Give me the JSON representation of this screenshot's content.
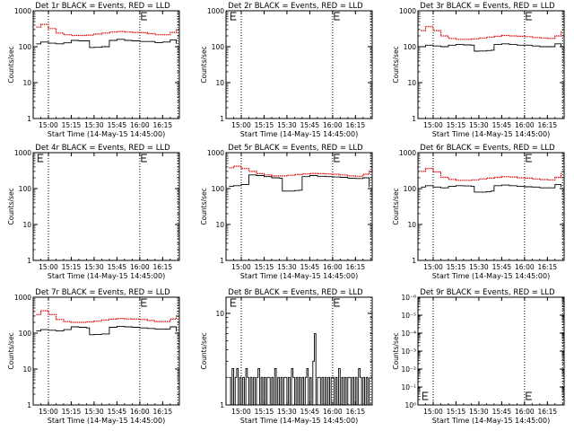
{
  "figure": {
    "background": "#ffffff",
    "axis_color": "#000000",
    "events_color": "#000000",
    "lld_color": "#e00000"
  },
  "chart_data": [
    {
      "type": "line",
      "title": "Det 1r BLACK = Events, RED = LLD",
      "xlabel": "Start Time (14-May-15 14:45:00)",
      "ylabel": "Counts/sec",
      "xticks": [
        "15:00",
        "15:15",
        "15:30",
        "15:45",
        "16:00",
        "16:15"
      ],
      "ylog": true,
      "yticks": [
        "1",
        "10",
        "100",
        "1000"
      ],
      "ylim": [
        1,
        1000
      ],
      "vlines": [
        "15:00",
        "16:00",
        "16:25"
      ],
      "markers": [
        "16:00"
      ],
      "series": [
        {
          "name": "Events",
          "color": "#000000",
          "x": [
            "14:52",
            "14:55",
            "15:00",
            "15:05",
            "15:10",
            "15:15",
            "15:20",
            "15:25",
            "15:27",
            "15:30",
            "15:35",
            "15:38",
            "15:40",
            "15:45",
            "15:50",
            "15:55",
            "16:00",
            "16:05",
            "16:10",
            "16:15",
            "16:20",
            "16:24"
          ],
          "y": [
            120,
            135,
            125,
            120,
            128,
            150,
            145,
            145,
            95,
            96,
            100,
            100,
            150,
            160,
            150,
            145,
            140,
            140,
            130,
            135,
            155,
            120
          ]
        },
        {
          "name": "LLD",
          "color": "#e00000",
          "x": [
            "14:52",
            "14:55",
            "15:00",
            "15:05",
            "15:10",
            "15:15",
            "15:20",
            "15:25",
            "15:30",
            "15:35",
            "15:40",
            "15:45",
            "15:50",
            "15:55",
            "16:00",
            "16:05",
            "16:10",
            "16:15",
            "16:20",
            "16:24"
          ],
          "y": [
            350,
            420,
            320,
            240,
            215,
            205,
            205,
            210,
            225,
            240,
            255,
            265,
            255,
            250,
            245,
            230,
            215,
            215,
            250,
            320
          ]
        }
      ]
    },
    {
      "type": "line",
      "title": "Det 2r BLACK = Events, RED = LLD",
      "xlabel": "Start Time (14-May-15 14:45:00)",
      "ylabel": "Counts/sec",
      "xticks": [
        "15:00",
        "15:15",
        "15:30",
        "15:45",
        "16:00",
        "16:15"
      ],
      "ylog": true,
      "yticks": [
        "1",
        "10",
        "100",
        "1000"
      ],
      "ylim": [
        1,
        1000
      ],
      "vlines": [
        "15:00",
        "16:00",
        "16:25"
      ],
      "markers": [
        "14:52",
        "16:00"
      ],
      "series": []
    },
    {
      "type": "line",
      "title": "Det 3r BLACK = Events, RED = LLD",
      "xlabel": "Start Time (14-May-15 14:45:00)",
      "ylabel": "Counts/sec",
      "xticks": [
        "15:00",
        "15:15",
        "15:30",
        "15:45",
        "16:00",
        "16:15"
      ],
      "ylog": true,
      "yticks": [
        "1",
        "10",
        "100",
        "1000"
      ],
      "ylim": [
        1,
        1000
      ],
      "vlines": [
        "15:00",
        "16:00",
        "16:25"
      ],
      "markers": [
        "16:00"
      ],
      "series": [
        {
          "name": "Events",
          "color": "#000000",
          "x": [
            "14:52",
            "14:55",
            "15:00",
            "15:05",
            "15:10",
            "15:15",
            "15:20",
            "15:25",
            "15:27",
            "15:30",
            "15:35",
            "15:38",
            "15:40",
            "15:45",
            "15:50",
            "15:55",
            "16:00",
            "16:05",
            "16:10",
            "16:15",
            "16:20",
            "16:24"
          ],
          "y": [
            100,
            110,
            105,
            100,
            110,
            115,
            112,
            110,
            75,
            76,
            78,
            80,
            115,
            120,
            115,
            110,
            110,
            105,
            100,
            100,
            120,
            100
          ]
        },
        {
          "name": "LLD",
          "color": "#e00000",
          "x": [
            "14:52",
            "14:55",
            "15:00",
            "15:05",
            "15:10",
            "15:15",
            "15:20",
            "15:25",
            "15:30",
            "15:35",
            "15:40",
            "15:45",
            "15:50",
            "15:55",
            "16:00",
            "16:05",
            "16:10",
            "16:15",
            "16:20",
            "16:24"
          ],
          "y": [
            280,
            360,
            280,
            200,
            170,
            160,
            160,
            165,
            175,
            185,
            195,
            205,
            200,
            195,
            190,
            180,
            175,
            170,
            200,
            280
          ]
        }
      ]
    },
    {
      "type": "line",
      "title": "Det 4r BLACK = Events, RED = LLD",
      "xlabel": "Start Time (14-May-15 14:45:00)",
      "ylabel": "Counts/sec",
      "xticks": [
        "15:00",
        "15:15",
        "15:30",
        "15:45",
        "16:00",
        "16:15"
      ],
      "ylog": true,
      "yticks": [
        "1",
        "10",
        "100",
        "1000"
      ],
      "ylim": [
        1,
        1000
      ],
      "vlines": [
        "15:00",
        "16:00",
        "16:25"
      ],
      "markers": [
        "14:52",
        "16:00"
      ],
      "series": []
    },
    {
      "type": "line",
      "title": "Det 5r BLACK = Events, RED = LLD",
      "xlabel": "Start Time (14-May-15 14:45:00)",
      "ylabel": "Counts/sec",
      "xticks": [
        "15:00",
        "15:15",
        "15:30",
        "15:45",
        "16:00",
        "16:15"
      ],
      "ylog": true,
      "yticks": [
        "1",
        "10",
        "100",
        "1000"
      ],
      "ylim": [
        1,
        1000
      ],
      "vlines": [
        "15:00",
        "16:00",
        "16:25"
      ],
      "markers": [
        "16:00"
      ],
      "series": [
        {
          "name": "Events",
          "color": "#000000",
          "x": [
            "14:52",
            "14:55",
            "15:00",
            "15:05",
            "15:10",
            "15:15",
            "15:20",
            "15:25",
            "15:27",
            "15:30",
            "15:35",
            "15:38",
            "15:40",
            "15:45",
            "15:50",
            "15:55",
            "16:00",
            "16:05",
            "16:10",
            "16:15",
            "16:20",
            "16:24"
          ],
          "y": [
            115,
            120,
            130,
            240,
            230,
            215,
            200,
            195,
            85,
            85,
            88,
            90,
            215,
            230,
            220,
            215,
            210,
            205,
            195,
            190,
            200,
            110
          ]
        },
        {
          "name": "LLD",
          "color": "#e00000",
          "x": [
            "14:52",
            "14:55",
            "15:00",
            "15:05",
            "15:10",
            "15:15",
            "15:20",
            "15:25",
            "15:30",
            "15:35",
            "15:40",
            "15:45",
            "15:50",
            "15:55",
            "16:00",
            "16:05",
            "16:10",
            "16:15",
            "16:20",
            "16:24"
          ],
          "y": [
            380,
            420,
            360,
            300,
            260,
            240,
            225,
            225,
            235,
            245,
            255,
            265,
            260,
            255,
            250,
            240,
            225,
            220,
            250,
            320
          ]
        }
      ]
    },
    {
      "type": "line",
      "title": "Det 6r BLACK = Events, RED = LLD",
      "xlabel": "Start Time (14-May-15 14:45:00)",
      "ylabel": "Counts/sec",
      "xticks": [
        "15:00",
        "15:15",
        "15:30",
        "15:45",
        "16:00",
        "16:15"
      ],
      "ylog": true,
      "yticks": [
        "1",
        "10",
        "100",
        "1000"
      ],
      "ylim": [
        1,
        1000
      ],
      "vlines": [
        "15:00",
        "16:00",
        "16:25"
      ],
      "markers": [
        "16:00"
      ],
      "series": [
        {
          "name": "Events",
          "color": "#000000",
          "x": [
            "14:52",
            "14:55",
            "15:00",
            "15:05",
            "15:10",
            "15:15",
            "15:20",
            "15:25",
            "15:27",
            "15:30",
            "15:35",
            "15:38",
            "15:40",
            "15:45",
            "15:50",
            "15:55",
            "16:00",
            "16:05",
            "16:10",
            "16:15",
            "16:20",
            "16:24"
          ],
          "y": [
            110,
            120,
            110,
            105,
            115,
            120,
            118,
            115,
            80,
            80,
            82,
            85,
            120,
            125,
            120,
            115,
            112,
            110,
            105,
            105,
            130,
            110
          ]
        },
        {
          "name": "LLD",
          "color": "#e00000",
          "x": [
            "14:52",
            "14:55",
            "15:00",
            "15:05",
            "15:10",
            "15:15",
            "15:20",
            "15:25",
            "15:30",
            "15:35",
            "15:40",
            "15:45",
            "15:50",
            "15:55",
            "16:00",
            "16:05",
            "16:10",
            "16:15",
            "16:20",
            "16:24"
          ],
          "y": [
            300,
            360,
            290,
            205,
            180,
            170,
            170,
            175,
            185,
            195,
            205,
            215,
            210,
            200,
            195,
            185,
            178,
            175,
            205,
            290
          ]
        }
      ]
    },
    {
      "type": "line",
      "title": "Det 7r BLACK = Events, RED = LLD",
      "xlabel": "Start Time (14-May-15 14:45:00)",
      "ylabel": "Counts/sec",
      "xticks": [
        "15:00",
        "15:15",
        "15:30",
        "15:45",
        "16:00",
        "16:15"
      ],
      "ylog": true,
      "yticks": [
        "1",
        "10",
        "100",
        "1000"
      ],
      "ylim": [
        1,
        1000
      ],
      "vlines": [
        "15:00",
        "16:00",
        "16:25"
      ],
      "markers": [
        "16:00"
      ],
      "series": [
        {
          "name": "Events",
          "color": "#000000",
          "x": [
            "14:52",
            "14:55",
            "15:00",
            "15:05",
            "15:10",
            "15:15",
            "15:20",
            "15:25",
            "15:27",
            "15:30",
            "15:35",
            "15:38",
            "15:40",
            "15:45",
            "15:50",
            "15:55",
            "16:00",
            "16:05",
            "16:10",
            "16:15",
            "16:20",
            "16:24"
          ],
          "y": [
            115,
            125,
            120,
            115,
            125,
            150,
            145,
            140,
            90,
            92,
            95,
            95,
            145,
            155,
            150,
            145,
            140,
            135,
            130,
            130,
            150,
            110
          ]
        },
        {
          "name": "LLD",
          "color": "#e00000",
          "x": [
            "14:52",
            "14:55",
            "15:00",
            "15:05",
            "15:10",
            "15:15",
            "15:20",
            "15:25",
            "15:30",
            "15:35",
            "15:40",
            "15:45",
            "15:50",
            "15:55",
            "16:00",
            "16:05",
            "16:10",
            "16:15",
            "16:20",
            "16:24"
          ],
          "y": [
            330,
            420,
            330,
            240,
            210,
            200,
            200,
            205,
            215,
            230,
            245,
            255,
            250,
            245,
            240,
            225,
            210,
            210,
            245,
            320
          ]
        }
      ]
    },
    {
      "type": "line",
      "title": "Det 8r BLACK = Events, RED = LLD",
      "xlabel": "Start Time (14-May-15 14:45:00)",
      "ylabel": "Counts/sec",
      "xticks": [
        "15:00",
        "15:15",
        "15:30",
        "15:45",
        "16:00",
        "16:15"
      ],
      "ylog": true,
      "yticks": [
        "1",
        "10"
      ],
      "ylim": [
        1,
        15
      ],
      "vlines": [
        "15:00",
        "16:00",
        "16:25"
      ],
      "markers": [
        "14:52",
        "16:00"
      ],
      "series": [
        {
          "name": "Events",
          "color": "#000000",
          "x": [
            "14:52",
            "14:53",
            "14:54",
            "14:55",
            "14:56",
            "14:57",
            "14:58",
            "14:59",
            "15:00",
            "15:01",
            "15:02",
            "15:03",
            "15:04",
            "15:05",
            "15:06",
            "15:07",
            "15:08",
            "15:09",
            "15:10",
            "15:11",
            "15:12",
            "15:13",
            "15:14",
            "15:15",
            "15:16",
            "15:17",
            "15:18",
            "15:19",
            "15:20",
            "15:21",
            "15:22",
            "15:23",
            "15:24",
            "15:25",
            "15:26",
            "15:27",
            "15:28",
            "15:29",
            "15:30",
            "15:31",
            "15:32",
            "15:33",
            "15:34",
            "15:35",
            "15:36",
            "15:37",
            "15:38",
            "15:39",
            "15:40",
            "15:41",
            "15:42",
            "15:43",
            "15:44",
            "15:45",
            "15:46",
            "15:47",
            "15:48",
            "15:49",
            "15:50",
            "15:51",
            "15:52",
            "15:53",
            "15:54",
            "15:55",
            "15:56",
            "15:57",
            "15:58",
            "15:59",
            "16:00",
            "16:01",
            "16:02",
            "16:03",
            "16:04",
            "16:05",
            "16:06",
            "16:07",
            "16:08",
            "16:09",
            "16:10",
            "16:11",
            "16:12",
            "16:13",
            "16:14",
            "16:15",
            "16:16",
            "16:17",
            "16:18",
            "16:19",
            "16:20",
            "16:21",
            "16:22",
            "16:23",
            "16:24"
          ],
          "y": [
            2,
            1,
            2.5,
            1,
            2,
            2.5,
            1,
            2,
            1,
            2,
            1,
            2.5,
            2,
            1,
            2,
            1,
            2,
            1,
            2,
            2.5,
            1,
            2,
            1,
            2,
            1,
            2,
            2,
            1,
            2,
            1,
            2.5,
            1,
            2,
            1,
            2,
            1,
            2,
            2,
            1,
            2,
            1,
            2.5,
            2,
            1,
            2,
            1,
            2,
            1,
            2,
            1,
            2,
            2.5,
            1,
            2,
            1,
            3,
            6,
            1,
            2,
            2,
            1,
            2,
            1,
            2,
            1,
            2,
            1,
            2,
            2,
            1,
            2,
            1,
            2.5,
            1,
            2,
            1,
            2,
            1,
            2,
            2,
            1,
            2,
            1,
            2,
            1,
            2.5,
            2,
            1,
            2,
            1,
            2,
            1,
            2
          ]
        }
      ]
    },
    {
      "type": "line",
      "title": "Det 9r BLACK = Events, RED = LLD",
      "xlabel": "Start Time (14-May-15 14:45:00)",
      "ylabel": "Counts/sec",
      "xticks": [
        "15:00",
        "15:15",
        "15:30",
        "15:45",
        "16:00",
        "16:15"
      ],
      "ylog": true,
      "yticks": [
        "10⁰",
        "10⁻¹",
        "10⁻²",
        "10⁻³",
        "10⁻⁴",
        "10⁻⁵",
        "10⁻⁶"
      ],
      "ylim": [
        1e-06,
        1
      ],
      "vlines": [
        "15:00",
        "16:00",
        "16:25"
      ],
      "markers": [
        "14:52",
        "16:00"
      ],
      "series": []
    }
  ]
}
